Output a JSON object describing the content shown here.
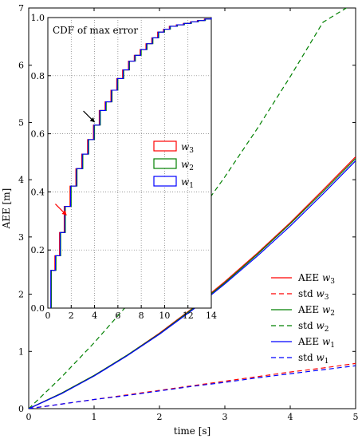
{
  "chart_data": [
    {
      "type": "line",
      "xlabel": "time [s]",
      "ylabel": "AEE [m]",
      "xlim": [
        0,
        5
      ],
      "ylim": [
        0,
        7
      ],
      "xticks": [
        "0",
        "1",
        "2",
        "3",
        "4",
        "5"
      ],
      "yticks": [
        "0",
        "1",
        "2",
        "3",
        "4",
        "5",
        "6",
        "7"
      ],
      "legend_position": "right",
      "x": [
        0,
        0.5,
        1,
        1.5,
        2,
        2.5,
        3,
        3.5,
        4,
        4.5,
        5
      ],
      "series": [
        {
          "name": "AEE w3",
          "label_main": "AEE",
          "label_sub": "3",
          "color": "#ff0000",
          "dash": "solid",
          "values": [
            0,
            0.27,
            0.58,
            0.93,
            1.32,
            1.75,
            2.22,
            2.72,
            3.25,
            3.82,
            4.4
          ]
        },
        {
          "name": "std w3",
          "label_main": "std",
          "label_sub": "3",
          "color": "#ff0000",
          "dash": "dashed",
          "values": [
            0,
            0.08,
            0.16,
            0.24,
            0.32,
            0.4,
            0.48,
            0.56,
            0.64,
            0.71,
            0.79
          ]
        },
        {
          "name": "AEE w2",
          "label_main": "AEE",
          "label_sub": "2",
          "color": "#008000",
          "dash": "solid",
          "values": [
            0,
            0.27,
            0.58,
            0.93,
            1.31,
            1.74,
            2.2,
            2.7,
            3.23,
            3.79,
            4.37
          ]
        },
        {
          "name": "std w2",
          "label_main": "std",
          "label_sub": "2",
          "color": "#008000",
          "dash": "dashed",
          "values": [
            0,
            0.55,
            1.15,
            1.8,
            2.5,
            3.25,
            4.05,
            4.9,
            5.8,
            6.75,
            7.1
          ]
        },
        {
          "name": "AEE w1",
          "label_main": "AEE",
          "label_sub": "1",
          "color": "#0000ff",
          "dash": "solid",
          "values": [
            0,
            0.26,
            0.57,
            0.92,
            1.3,
            1.72,
            2.18,
            2.67,
            3.19,
            3.75,
            4.33
          ]
        },
        {
          "name": "std w1",
          "label_main": "std",
          "label_sub": "1",
          "color": "#0000ff",
          "dash": "dashed",
          "values": [
            0,
            0.08,
            0.16,
            0.23,
            0.31,
            0.39,
            0.46,
            0.54,
            0.61,
            0.68,
            0.75
          ]
        }
      ]
    },
    {
      "type": "line",
      "title": "CDF of max error",
      "xlim": [
        0,
        14
      ],
      "ylim": [
        0,
        1.0
      ],
      "xticks": [
        "0",
        "2",
        "4",
        "6",
        "8",
        "10",
        "12",
        "14"
      ],
      "yticks": [
        "0.0",
        "0.2",
        "0.4",
        "0.6",
        "0.8",
        "1.0"
      ],
      "legend_position": "center-right",
      "series": [
        {
          "name": "w3",
          "label_sub": "3",
          "color": "#ff0000",
          "x": [
            0.3,
            0.6,
            1.0,
            1.4,
            1.9,
            2.4,
            2.9,
            3.4,
            3.9,
            4.4,
            4.9,
            5.4,
            5.9,
            6.4,
            6.9,
            7.4,
            7.9,
            8.4,
            8.9,
            9.4,
            9.9,
            10.4,
            11,
            11.6,
            12.2,
            12.8,
            13.4,
            14
          ],
          "y": [
            0.13,
            0.18,
            0.26,
            0.35,
            0.42,
            0.48,
            0.53,
            0.58,
            0.63,
            0.68,
            0.71,
            0.75,
            0.79,
            0.82,
            0.85,
            0.87,
            0.89,
            0.91,
            0.93,
            0.95,
            0.96,
            0.97,
            0.975,
            0.98,
            0.985,
            0.99,
            0.995,
            1.0
          ]
        },
        {
          "name": "w2",
          "label_sub": "2",
          "color": "#008000",
          "x": [
            0.3,
            0.7,
            1.1,
            1.5,
            2.0,
            2.5,
            3.0,
            3.5,
            4.0,
            4.5,
            5.0,
            5.5,
            6.0,
            6.5,
            7.0,
            7.5,
            8.0,
            8.5,
            9.0,
            9.5,
            10.0,
            10.5,
            11.1,
            11.7,
            12.3,
            12.9,
            13.5,
            14
          ],
          "y": [
            0.13,
            0.18,
            0.26,
            0.35,
            0.42,
            0.48,
            0.53,
            0.58,
            0.63,
            0.68,
            0.71,
            0.75,
            0.79,
            0.82,
            0.85,
            0.87,
            0.89,
            0.91,
            0.93,
            0.95,
            0.96,
            0.97,
            0.975,
            0.98,
            0.985,
            0.99,
            0.995,
            1.0
          ]
        },
        {
          "name": "w1",
          "label_sub": "1",
          "color": "#0000ff",
          "x": [
            0.25,
            0.65,
            1.05,
            1.45,
            1.95,
            2.45,
            2.95,
            3.45,
            3.95,
            4.45,
            4.95,
            5.45,
            5.95,
            6.45,
            6.95,
            7.45,
            7.95,
            8.45,
            8.95,
            9.45,
            9.95,
            10.45,
            11.05,
            11.65,
            12.25,
            12.85,
            13.45,
            14
          ],
          "y": [
            0.13,
            0.18,
            0.26,
            0.35,
            0.42,
            0.48,
            0.53,
            0.58,
            0.63,
            0.68,
            0.71,
            0.75,
            0.79,
            0.82,
            0.85,
            0.87,
            0.89,
            0.91,
            0.93,
            0.95,
            0.96,
            0.97,
            0.975,
            0.98,
            0.985,
            0.99,
            0.995,
            1.0
          ]
        }
      ],
      "annotations": [
        {
          "type": "arrow",
          "color": "#ff0000",
          "at": [
            1.6,
            0.32
          ]
        },
        {
          "type": "arrow",
          "color": "#000000",
          "at": [
            4.0,
            0.64
          ]
        }
      ]
    }
  ]
}
